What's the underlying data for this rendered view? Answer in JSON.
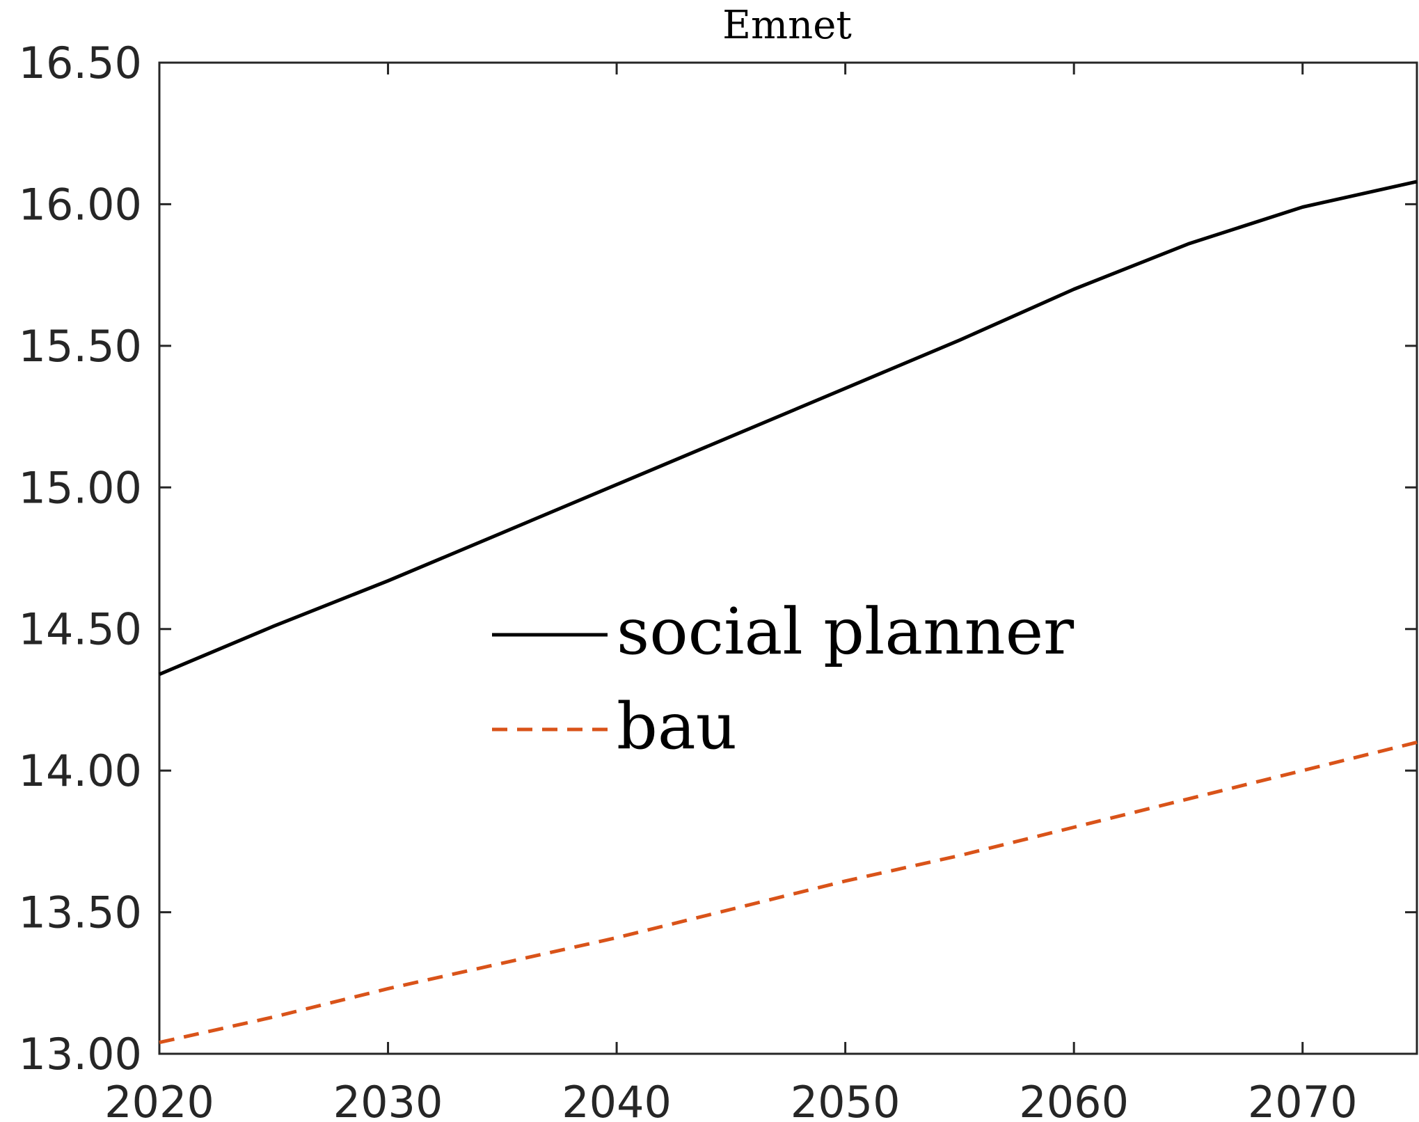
{
  "chart_data": {
    "type": "line",
    "title": "Emnet",
    "xlabel": "",
    "ylabel": "",
    "xlim": [
      2020,
      2075
    ],
    "ylim": [
      13.0,
      16.5
    ],
    "xticks": [
      2020,
      2030,
      2040,
      2050,
      2060,
      2070
    ],
    "xtick_labels": [
      "2020",
      "2030",
      "2040",
      "2050",
      "2060",
      "2070"
    ],
    "yticks": [
      13.0,
      13.5,
      14.0,
      14.5,
      15.0,
      15.5,
      16.0,
      16.5
    ],
    "ytick_labels": [
      "13.00",
      "13.50",
      "14.00",
      "14.50",
      "15.00",
      "15.50",
      "16.00",
      "16.50"
    ],
    "grid": false,
    "legend_position": "center",
    "series": [
      {
        "name": "social planner",
        "color": "#000000",
        "line_style": "solid",
        "x": [
          2020,
          2025,
          2030,
          2035,
          2040,
          2045,
          2050,
          2055,
          2060,
          2065,
          2070,
          2075
        ],
        "y": [
          14.34,
          14.51,
          14.67,
          14.84,
          15.01,
          15.18,
          15.35,
          15.52,
          15.7,
          15.86,
          15.99,
          16.08
        ]
      },
      {
        "name": "bau",
        "color": "#d95319",
        "line_style": "dashed",
        "x": [
          2020,
          2025,
          2030,
          2035,
          2040,
          2045,
          2050,
          2055,
          2060,
          2065,
          2070,
          2075
        ],
        "y": [
          13.04,
          13.13,
          13.23,
          13.32,
          13.41,
          13.51,
          13.61,
          13.7,
          13.8,
          13.9,
          14.0,
          14.1
        ]
      }
    ]
  }
}
